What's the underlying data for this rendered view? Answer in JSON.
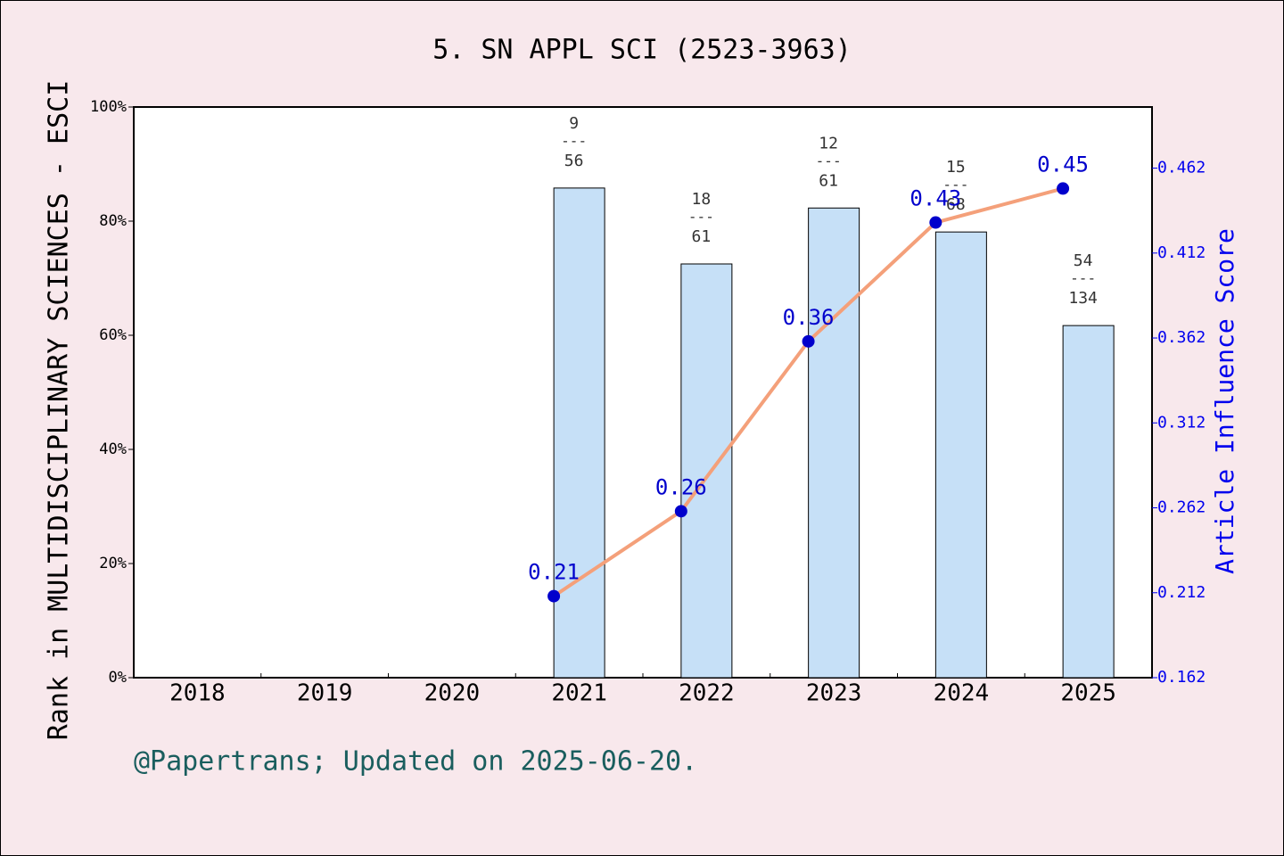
{
  "chart_data": {
    "type": "bar",
    "title": "5. SN APPL SCI (2523-3963)",
    "ylabel": "Rank in MULTIDISCIPLINARY SCIENCES - ESCI",
    "y2label": "Article Influence Score",
    "footer": "@Papertrans; Updated on 2025-06-20.",
    "categories": [
      "2018",
      "2019",
      "2020",
      "2021",
      "2022",
      "2023",
      "2024",
      "2025"
    ],
    "ylim": [
      0,
      100
    ],
    "yticks": [
      {
        "value": 0,
        "label": "0%"
      },
      {
        "value": 20,
        "label": "20%"
      },
      {
        "value": 40,
        "label": "40%"
      },
      {
        "value": 60,
        "label": "60%"
      },
      {
        "value": 80,
        "label": "80%"
      },
      {
        "value": 100,
        "label": "100%"
      }
    ],
    "y2lim": [
      0.162,
      0.498
    ],
    "y2ticks": [
      0.162,
      0.212,
      0.262,
      0.312,
      0.362,
      0.412,
      0.462
    ],
    "rank_separator": "---",
    "rank_labels": [
      null,
      null,
      null,
      {
        "rank": "9",
        "total": "56"
      },
      {
        "rank": "18",
        "total": "61"
      },
      {
        "rank": "12",
        "total": "61"
      },
      {
        "rank": "15",
        "total": "68"
      },
      {
        "rank": "54",
        "total": "134"
      }
    ],
    "series": [
      {
        "name": "Rank",
        "type": "bar",
        "color": "#c6e0f7",
        "values": [
          null,
          null,
          null,
          85.8,
          72.5,
          82.3,
          78.1,
          61.7
        ]
      },
      {
        "name": "Article Influence Score",
        "type": "line",
        "axis": "y2",
        "color": "#f4a07a",
        "marker_color": "#0000cc",
        "values": [
          null,
          null,
          null,
          0.21,
          0.26,
          0.36,
          0.43,
          0.45
        ]
      }
    ]
  }
}
